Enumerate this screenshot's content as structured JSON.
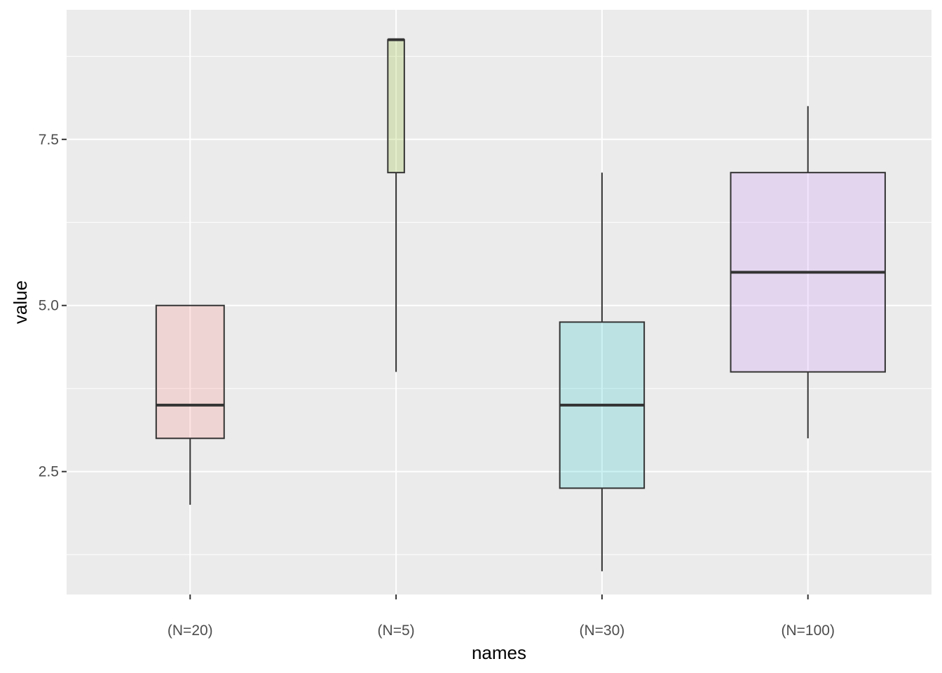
{
  "chart_data": {
    "type": "box",
    "xlabel": "names",
    "ylabel": "value",
    "categories": [
      "(N=20)",
      "(N=5)",
      "(N=30)",
      "(N=100)"
    ],
    "boxes": [
      {
        "category": "(N=20)",
        "min": 2,
        "q1": 3,
        "median": 3.5,
        "q3": 5,
        "max": 5,
        "fill": "#F8766D"
      },
      {
        "category": "(N=5)",
        "min": 4,
        "q1": 7,
        "median": 9,
        "q3": 9,
        "max": 9,
        "fill": "#7CAE00"
      },
      {
        "category": "(N=30)",
        "min": 1,
        "q1": 2.25,
        "median": 3.5,
        "q3": 4.75,
        "max": 7,
        "fill": "#00BFC4"
      },
      {
        "category": "(N=100)",
        "min": 3,
        "q1": 4,
        "median": 5.5,
        "q3": 7,
        "max": 8,
        "fill": "#C77CFF"
      }
    ],
    "box_widths": [
      0.33,
      0.08,
      0.41,
      0.75
    ],
    "fill_alpha": 0.2,
    "ylim": [
      0.65,
      9.45
    ],
    "y_ticks": [
      2.5,
      5.0,
      7.5
    ],
    "y_tick_labels": [
      "2.5",
      "5.0",
      "7.5"
    ],
    "y_minor_ticks": [
      1.25,
      3.75,
      6.25,
      8.75
    ],
    "grid": true,
    "legend": "none",
    "colors": {
      "panel": "#EBEBEB",
      "grid": "#FFFFFF",
      "line": "#333333"
    }
  }
}
